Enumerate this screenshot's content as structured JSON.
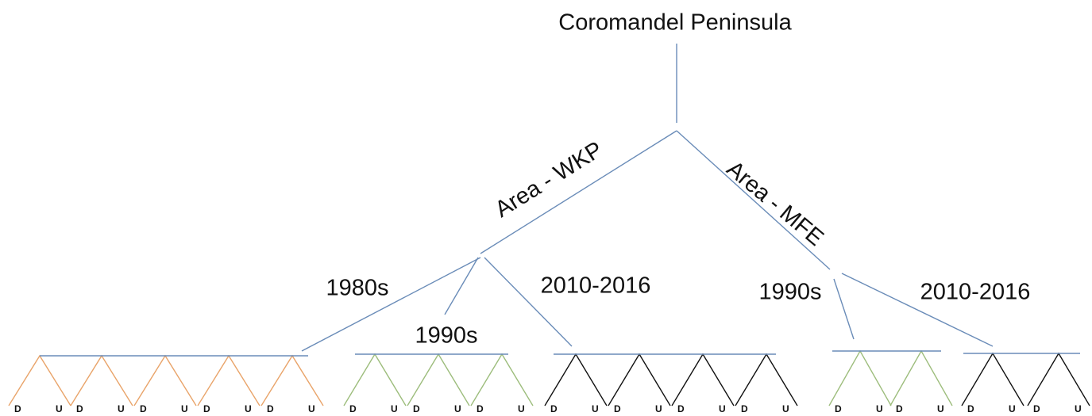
{
  "root": "Coromandel Peninsula",
  "areas": [
    {
      "label": "Area - WKP",
      "periods": [
        "1980s",
        "1990s",
        "2010-2016"
      ]
    },
    {
      "label": "Area - MFE",
      "periods": [
        "1990s",
        "2010-2016"
      ]
    }
  ],
  "groups": [
    {
      "peaks": [
        [
          "D",
          "U"
        ],
        [
          "D",
          "U"
        ],
        [
          "D",
          "U"
        ],
        [
          "D",
          "U"
        ],
        [
          "D",
          "U"
        ]
      ]
    },
    {
      "peaks": [
        [
          "D",
          "U"
        ],
        [
          "D",
          "U"
        ],
        [
          "D",
          "U"
        ]
      ]
    },
    {
      "peaks": [
        [
          "D",
          "U"
        ],
        [
          "D",
          "U"
        ],
        [
          "D",
          "U"
        ],
        [
          "D",
          "U"
        ]
      ]
    },
    {
      "peaks": [
        [
          "D",
          "U"
        ],
        [
          "D",
          "U"
        ]
      ]
    },
    {
      "peaks": [
        [
          "D",
          "U"
        ],
        [
          "D",
          "U"
        ]
      ]
    }
  ]
}
